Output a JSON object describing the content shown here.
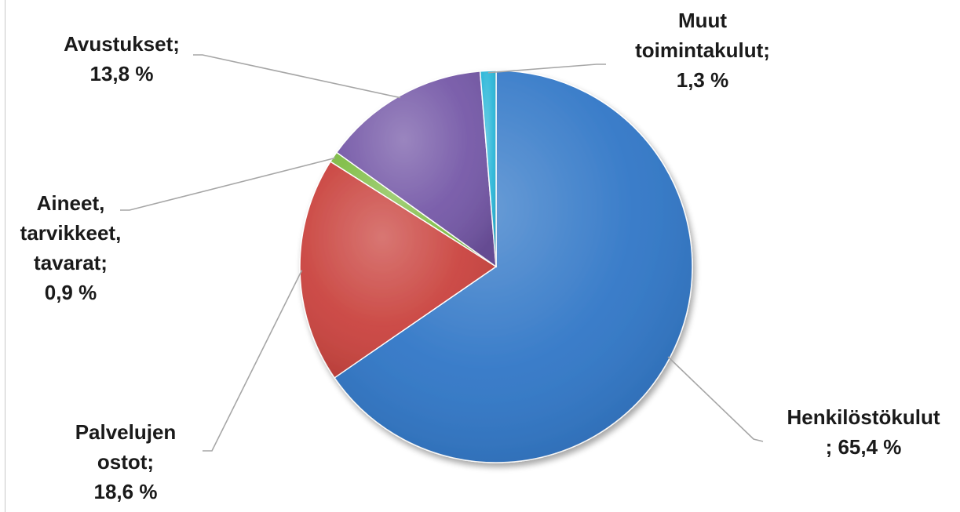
{
  "chart_data": {
    "type": "pie",
    "slices": [
      {
        "label": "Henkilöstökulut",
        "value": 65.4,
        "color": "#2e75c6",
        "label_lines": [
          "Henkilöstökulut",
          "; 65,4 %"
        ]
      },
      {
        "label": "Palvelujen ostot",
        "value": 18.6,
        "color": "#c9413c",
        "label_lines": [
          "Palvelujen",
          "ostot;",
          "18,6 %"
        ]
      },
      {
        "label": "Aineet, tarvikkeet, tavarat",
        "value": 0.9,
        "color": "#7fbd45",
        "label_lines": [
          "Aineet,",
          "tarvikkeet,",
          "tavarat;",
          "0,9 %"
        ]
      },
      {
        "label": "Avustukset",
        "value": 13.8,
        "color": "#7356a6",
        "label_lines": [
          "Avustukset;",
          "13,8 %"
        ]
      },
      {
        "label": "Muut toimintakulut",
        "value": 1.3,
        "color": "#29b6d8",
        "label_lines": [
          "Muut",
          "toimintakulut;",
          "1,3 %"
        ]
      }
    ],
    "start": "12 o'clock",
    "direction": "clockwise",
    "legend": "none",
    "data_labels": "outside with leader lines"
  }
}
